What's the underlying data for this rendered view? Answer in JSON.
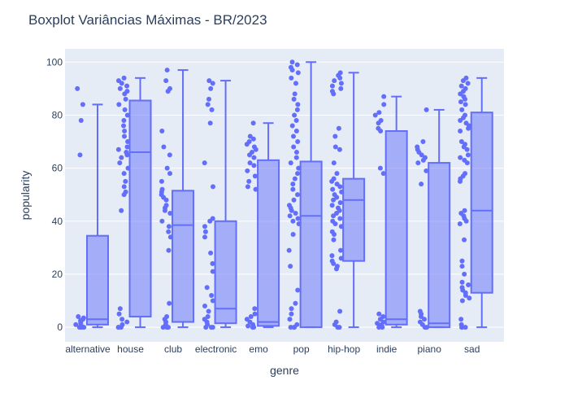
{
  "chart_data": {
    "type": "box",
    "title": "Boxplot Variâncias Máximas - BR/2023",
    "xlabel": "genre",
    "ylabel": "popularity",
    "ylim": [
      -5.5,
      105
    ],
    "yticks": [
      0,
      20,
      40,
      60,
      80,
      100
    ],
    "grid": true,
    "legend": "none",
    "colors": {
      "box": "#636efa",
      "box_fill": "#636efa",
      "plot_bg": "#e5ecf6",
      "text": "#2a3f5f",
      "grid": "#ffffff"
    },
    "categories": [
      "alternative",
      "house",
      "club",
      "electronic",
      "emo",
      "pop",
      "hip-hop",
      "indie",
      "piano",
      "sad"
    ],
    "boxes": [
      {
        "q1": 1,
        "median": 3,
        "q3": 34.5,
        "lower_fence": 0,
        "upper_fence": 84,
        "points": [
          90,
          84,
          78,
          65,
          4,
          3.5,
          3,
          2.5,
          2,
          1.5,
          1,
          0.5,
          0,
          0,
          0
        ]
      },
      {
        "q1": 4,
        "median": 66,
        "q3": 85.5,
        "lower_fence": 0,
        "upper_fence": 94,
        "points": [
          94,
          93,
          92,
          91,
          90,
          89,
          88,
          86,
          84,
          82,
          80,
          78,
          76,
          74,
          72,
          70,
          68,
          67,
          66,
          65,
          64,
          62,
          60,
          58,
          55,
          53,
          51,
          50,
          44,
          7,
          5,
          3,
          2,
          1,
          0,
          0,
          0
        ]
      },
      {
        "q1": 2,
        "median": 38.5,
        "q3": 51.5,
        "lower_fence": 0,
        "upper_fence": 97,
        "points": [
          97,
          93,
          90,
          89,
          74,
          68,
          65,
          60,
          58,
          55,
          52,
          51,
          50,
          49,
          48,
          46,
          45,
          44,
          43,
          40,
          38,
          36,
          34,
          29,
          9,
          4,
          3,
          2,
          1,
          0,
          0,
          0
        ]
      },
      {
        "q1": 1.5,
        "median": 7,
        "q3": 40,
        "lower_fence": 0,
        "upper_fence": 93,
        "points": [
          93,
          92,
          90,
          86,
          84,
          82,
          77,
          62,
          53,
          41,
          40,
          38,
          36,
          34,
          28,
          24,
          21,
          15,
          12,
          10,
          8,
          6,
          4,
          3,
          2,
          1,
          0,
          0,
          0
        ]
      },
      {
        "q1": 0.5,
        "median": 2,
        "q3": 63,
        "lower_fence": 0,
        "upper_fence": 77,
        "points": [
          77,
          72,
          71,
          70,
          69,
          68,
          67,
          66,
          65,
          64,
          62,
          61,
          59,
          57,
          55,
          53,
          52,
          7,
          5,
          4,
          3,
          2,
          1,
          0.5,
          0,
          0
        ]
      },
      {
        "q1": 0,
        "median": 42,
        "q3": 62.5,
        "lower_fence": 0,
        "upper_fence": 100,
        "points": [
          100,
          99,
          98,
          97,
          96,
          94,
          92,
          88,
          86,
          84,
          82,
          80,
          78,
          76,
          74,
          72,
          70,
          68,
          66,
          64,
          62,
          60,
          58,
          56,
          54,
          52,
          50,
          48,
          46,
          45,
          44,
          43,
          42,
          41,
          40,
          39,
          35,
          29,
          23,
          14,
          9,
          7,
          5,
          3,
          1,
          0,
          0,
          0
        ]
      },
      {
        "q1": 25,
        "median": 48,
        "q3": 56,
        "lower_fence": 0,
        "upper_fence": 96,
        "points": [
          96,
          95,
          94,
          93,
          92,
          91,
          90,
          89,
          88,
          75,
          72,
          68,
          67,
          62,
          58,
          56,
          55,
          54,
          53,
          52,
          51,
          50,
          49,
          48,
          47,
          46,
          45,
          44,
          43,
          42,
          41,
          40,
          39,
          38,
          36,
          35,
          33,
          29,
          27,
          26,
          25,
          24,
          23,
          22,
          6,
          2,
          1,
          0,
          0
        ]
      },
      {
        "q1": 1,
        "median": 3,
        "q3": 74,
        "lower_fence": 0,
        "upper_fence": 87,
        "points": [
          87,
          84,
          81,
          80,
          78,
          77,
          75,
          74,
          60,
          58,
          5,
          4,
          3,
          2,
          1.5,
          1,
          0.5,
          0,
          0
        ]
      },
      {
        "q1": 0,
        "median": 1.5,
        "q3": 62,
        "lower_fence": 0,
        "upper_fence": 82,
        "points": [
          82,
          70,
          68,
          67,
          66,
          65,
          64,
          63,
          62,
          59,
          54,
          6,
          5,
          4,
          3,
          2,
          1,
          0,
          0
        ]
      },
      {
        "q1": 13,
        "median": 44,
        "q3": 81,
        "lower_fence": 0,
        "upper_fence": 94,
        "points": [
          94,
          93,
          92,
          91,
          90,
          89,
          88,
          87,
          86,
          85,
          84,
          82,
          80,
          79,
          78,
          77,
          76,
          75,
          74,
          70,
          69,
          68,
          67,
          65,
          64,
          63,
          62,
          58,
          57,
          56,
          55,
          44,
          43,
          42,
          41,
          40,
          39,
          33,
          25,
          23,
          20,
          17,
          16,
          15,
          14,
          13,
          12,
          11,
          10,
          3,
          1,
          0,
          0,
          0
        ]
      }
    ]
  }
}
